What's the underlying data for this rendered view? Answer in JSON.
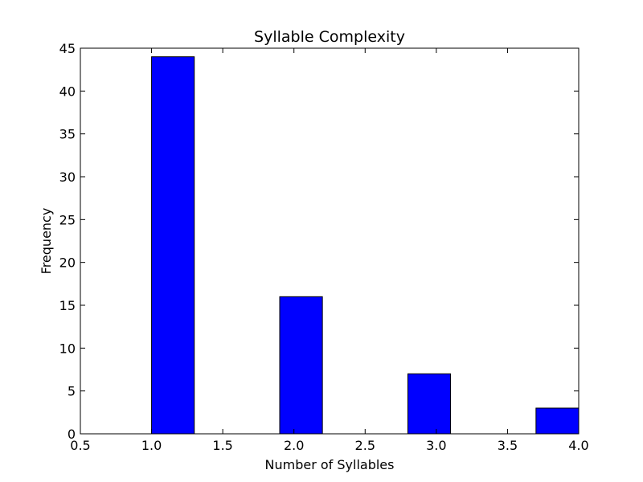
{
  "chart_data": {
    "type": "bar",
    "title": "Syllable Complexity",
    "xlabel": "Number of Syllables",
    "ylabel": "Frequency",
    "xlim": [
      0.5,
      4.0
    ],
    "ylim": [
      0,
      45
    ],
    "xticks": [
      "0.5",
      "1.0",
      "1.5",
      "2.0",
      "2.5",
      "3.0",
      "3.5",
      "4.0"
    ],
    "yticks": [
      "0",
      "5",
      "10",
      "15",
      "20",
      "25",
      "30",
      "35",
      "40",
      "45"
    ],
    "bars": [
      {
        "x_start": 1.0,
        "x_end": 1.3,
        "value": 44
      },
      {
        "x_start": 1.9,
        "x_end": 2.2,
        "value": 16
      },
      {
        "x_start": 2.8,
        "x_end": 3.1,
        "value": 7
      },
      {
        "x_start": 3.7,
        "x_end": 4.0,
        "value": 3
      }
    ],
    "bar_color": "#0000ff",
    "edge_color": "#000000",
    "grid": false,
    "legend": "none"
  }
}
